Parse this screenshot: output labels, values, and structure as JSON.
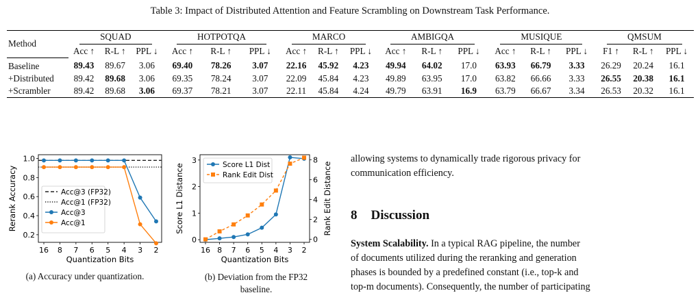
{
  "table": {
    "caption": "Table 3: Impact of Distributed Attention and Feature Scrambling on Downstream Task Performance.",
    "method_header": "Method",
    "groups": [
      "SQUAD",
      "HOTPOTQA",
      "MARCO",
      "AMBIGQA",
      "MUSIQUE",
      "QMSUM"
    ],
    "subheaders": [
      "Acc ↑",
      "R-L ↑",
      "PPL ↓",
      "Acc ↑",
      "R-L ↑",
      "PPL ↓",
      "Acc ↑",
      "R-L ↑",
      "PPL ↓",
      "Acc ↑",
      "R-L ↑",
      "PPL ↓",
      "Acc ↑",
      "R-L ↑",
      "PPL ↓",
      "F1 ↑",
      "R-L ↑",
      "PPL ↓"
    ],
    "rows": [
      {
        "method": "Baseline",
        "values": [
          "89.43",
          "89.67",
          "3.06",
          "69.40",
          "78.26",
          "3.07",
          "22.16",
          "45.92",
          "4.23",
          "49.94",
          "64.02",
          "17.0",
          "63.93",
          "66.79",
          "3.33",
          "26.29",
          "20.24",
          "16.1"
        ],
        "bold": [
          true,
          false,
          false,
          true,
          true,
          true,
          true,
          true,
          true,
          true,
          true,
          false,
          true,
          true,
          true,
          false,
          false,
          false
        ]
      },
      {
        "method": "+Distributed",
        "values": [
          "89.42",
          "89.68",
          "3.06",
          "69.35",
          "78.24",
          "3.07",
          "22.09",
          "45.84",
          "4.23",
          "49.89",
          "63.95",
          "17.0",
          "63.82",
          "66.66",
          "3.33",
          "26.55",
          "20.38",
          "16.1"
        ],
        "bold": [
          false,
          true,
          false,
          false,
          false,
          false,
          false,
          false,
          false,
          false,
          false,
          false,
          false,
          false,
          false,
          true,
          true,
          true
        ]
      },
      {
        "method": "+Scrambler",
        "values": [
          "89.42",
          "89.68",
          "3.06",
          "69.37",
          "78.21",
          "3.07",
          "22.11",
          "45.84",
          "4.24",
          "49.79",
          "63.91",
          "16.9",
          "63.79",
          "66.67",
          "3.34",
          "26.53",
          "20.32",
          "16.1"
        ],
        "bold": [
          false,
          false,
          true,
          false,
          false,
          false,
          false,
          false,
          false,
          false,
          false,
          true,
          false,
          false,
          false,
          false,
          false,
          false
        ]
      }
    ]
  },
  "chart_data": [
    {
      "type": "line",
      "xlabel": "Quantization Bits",
      "ylabel": "Rerank Accuracy",
      "x": [
        "16",
        "8",
        "7",
        "6",
        "5",
        "4",
        "3",
        "2"
      ],
      "ylim": [
        0.12,
        1.04
      ],
      "yticks": [
        "0.2",
        "0.4",
        "0.6",
        "0.8",
        "1.0"
      ],
      "series": [
        {
          "name": "Acc@3 (FP32)",
          "style": "dashed",
          "color": "#222222",
          "values": [
            0.98,
            0.98,
            0.98,
            0.98,
            0.98,
            0.98,
            0.98,
            0.98
          ]
        },
        {
          "name": "Acc@1 (FP32)",
          "style": "dotted",
          "color": "#222222",
          "values": [
            0.91,
            0.91,
            0.91,
            0.91,
            0.91,
            0.91,
            0.91,
            0.91
          ]
        },
        {
          "name": "Acc@3",
          "color": "#1f77b4",
          "values": [
            0.98,
            0.98,
            0.98,
            0.98,
            0.98,
            0.98,
            0.59,
            0.34
          ]
        },
        {
          "name": "Acc@1",
          "color": "#ff7f0e",
          "values": [
            0.91,
            0.91,
            0.91,
            0.91,
            0.91,
            0.91,
            0.31,
            0.11
          ]
        }
      ],
      "legend": "lower-left",
      "caption": "(a) Accuracy under quantization."
    },
    {
      "type": "line",
      "xlabel": "Quantization Bits",
      "ylabel": "Score L1 Distance",
      "ylabel_right": "Rank Edit Distance",
      "x": [
        "16",
        "8",
        "7",
        "6",
        "5",
        "4",
        "3",
        "2"
      ],
      "ylim": [
        -0.1,
        3.2
      ],
      "ylim_right": [
        -0.3,
        8.5
      ],
      "yticks": [
        "0",
        "1",
        "2",
        "3"
      ],
      "yticks_right": [
        "0",
        "2",
        "4",
        "6",
        "8"
      ],
      "series": [
        {
          "name": "Score L1 Dist",
          "axis": "left",
          "color": "#1f77b4",
          "values": [
            0.0,
            0.05,
            0.1,
            0.2,
            0.45,
            0.95,
            3.1,
            3.05
          ]
        },
        {
          "name": "Rank Edit Dist",
          "axis": "right",
          "style": "dashed",
          "marker": "square",
          "color": "#ff7f0e",
          "values": [
            0.0,
            0.8,
            1.5,
            2.4,
            3.5,
            4.9,
            7.6,
            8.2
          ]
        }
      ],
      "legend": "top-left",
      "caption_line1": "(b) Deviation from the FP32",
      "caption_line2": "baseline."
    }
  ],
  "body": {
    "p1_line1": "allowing systems to dynamically trade rigorous privacy for",
    "p1_line2": "communication efficiency.",
    "section_num": "8",
    "section_title": "Discussion",
    "para_head": "System Scalability.",
    "para_line1": " In a typical RAG pipeline, the number",
    "para_line2": "of documents utilized during the reranking and generation",
    "para_line3": "phases is bounded by a predefined constant (i.e., top-k and",
    "para_line4": "top-m documents). Consequently, the number of participating"
  }
}
